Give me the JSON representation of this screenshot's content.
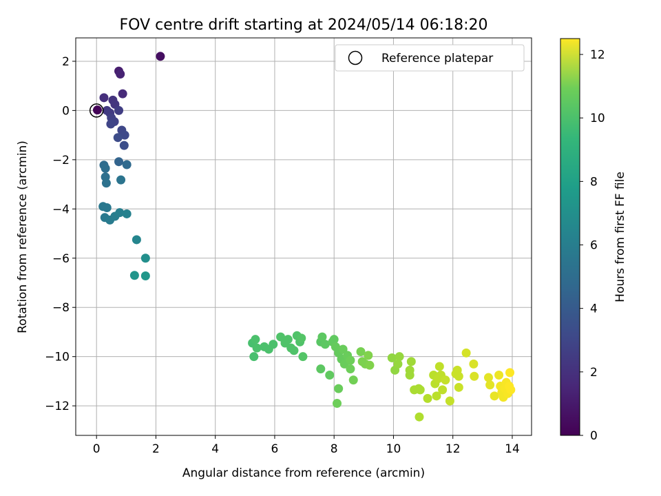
{
  "chart_data": {
    "type": "scatter",
    "title": "FOV centre drift starting at 2024/05/14 06:18:20",
    "xlabel": "Angular distance from reference (arcmin)",
    "ylabel": "Rotation from reference (arcmin)",
    "xlim": [
      -0.7,
      14.65
    ],
    "ylim": [
      -13.2,
      2.95
    ],
    "xticks": [
      0,
      2,
      4,
      6,
      8,
      10,
      12,
      14
    ],
    "yticks": [
      2,
      0,
      -2,
      -4,
      -6,
      -8,
      -10,
      -12
    ],
    "xtick_labels": [
      "0",
      "2",
      "4",
      "6",
      "8",
      "10",
      "12",
      "14"
    ],
    "ytick_labels": [
      "2",
      "0",
      "−2",
      "−4",
      "−6",
      "−8",
      "−10",
      "−12"
    ],
    "grid": true,
    "legend": {
      "position": "top-right",
      "label": "Reference platepar"
    },
    "reference_point": {
      "x": 0,
      "y": 0
    },
    "colorbar": {
      "label": "Hours from first FF file",
      "range": [
        0,
        12.5
      ],
      "ticks": [
        0,
        2,
        4,
        6,
        8,
        10,
        12
      ],
      "tick_labels": [
        "0",
        "2",
        "4",
        "6",
        "8",
        "10",
        "12"
      ],
      "colormap": "viridis"
    },
    "points": [
      {
        "x": 0.03,
        "y": 0.02,
        "h": 0.1
      },
      {
        "x": 2.15,
        "y": 2.2,
        "h": 0.5
      },
      {
        "x": 0.75,
        "y": 1.6,
        "h": 1.0
      },
      {
        "x": 0.8,
        "y": 1.48,
        "h": 1.2
      },
      {
        "x": 0.88,
        "y": 0.68,
        "h": 1.5
      },
      {
        "x": 0.25,
        "y": 0.52,
        "h": 1.7
      },
      {
        "x": 0.55,
        "y": 0.42,
        "h": 1.9
      },
      {
        "x": 0.62,
        "y": 0.25,
        "h": 2.0
      },
      {
        "x": 0.35,
        "y": 0.0,
        "h": 2.1
      },
      {
        "x": 0.45,
        "y": -0.1,
        "h": 2.2
      },
      {
        "x": 0.75,
        "y": 0.0,
        "h": 2.3
      },
      {
        "x": 0.5,
        "y": -0.3,
        "h": 2.4
      },
      {
        "x": 0.6,
        "y": -0.45,
        "h": 2.5
      },
      {
        "x": 0.48,
        "y": -0.55,
        "h": 2.6
      },
      {
        "x": 0.85,
        "y": -0.8,
        "h": 2.7
      },
      {
        "x": 0.95,
        "y": -1.0,
        "h": 2.8
      },
      {
        "x": 0.72,
        "y": -1.1,
        "h": 2.9
      },
      {
        "x": 0.93,
        "y": -1.42,
        "h": 3.0
      },
      {
        "x": 0.75,
        "y": -2.08,
        "h": 4.0
      },
      {
        "x": 1.02,
        "y": -2.2,
        "h": 4.3
      },
      {
        "x": 0.25,
        "y": -2.22,
        "h": 4.4
      },
      {
        "x": 0.3,
        "y": -2.35,
        "h": 4.5
      },
      {
        "x": 0.3,
        "y": -2.7,
        "h": 4.6
      },
      {
        "x": 0.33,
        "y": -2.95,
        "h": 4.7
      },
      {
        "x": 0.82,
        "y": -2.82,
        "h": 4.8
      },
      {
        "x": 0.22,
        "y": -3.9,
        "h": 5.0
      },
      {
        "x": 0.35,
        "y": -3.95,
        "h": 5.0
      },
      {
        "x": 0.28,
        "y": -4.35,
        "h": 5.1
      },
      {
        "x": 0.45,
        "y": -4.45,
        "h": 5.2
      },
      {
        "x": 0.62,
        "y": -4.3,
        "h": 5.3
      },
      {
        "x": 0.78,
        "y": -4.15,
        "h": 5.4
      },
      {
        "x": 1.02,
        "y": -4.2,
        "h": 5.5
      },
      {
        "x": 1.35,
        "y": -5.25,
        "h": 5.7
      },
      {
        "x": 1.65,
        "y": -6.0,
        "h": 6.2
      },
      {
        "x": 1.28,
        "y": -6.7,
        "h": 6.5
      },
      {
        "x": 1.65,
        "y": -6.72,
        "h": 6.6
      },
      {
        "x": 5.25,
        "y": -9.45,
        "h": 8.8
      },
      {
        "x": 5.35,
        "y": -9.3,
        "h": 8.9
      },
      {
        "x": 5.4,
        "y": -9.65,
        "h": 8.9
      },
      {
        "x": 5.3,
        "y": -10.0,
        "h": 8.8
      },
      {
        "x": 5.65,
        "y": -9.6,
        "h": 8.9
      },
      {
        "x": 5.8,
        "y": -9.7,
        "h": 8.9
      },
      {
        "x": 5.95,
        "y": -9.5,
        "h": 8.9
      },
      {
        "x": 6.2,
        "y": -9.2,
        "h": 9.0
      },
      {
        "x": 6.35,
        "y": -9.45,
        "h": 9.0
      },
      {
        "x": 6.45,
        "y": -9.3,
        "h": 9.0
      },
      {
        "x": 6.55,
        "y": -9.65,
        "h": 9.0
      },
      {
        "x": 6.65,
        "y": -9.75,
        "h": 9.0
      },
      {
        "x": 6.75,
        "y": -9.15,
        "h": 9.0
      },
      {
        "x": 6.85,
        "y": -9.4,
        "h": 9.0
      },
      {
        "x": 6.9,
        "y": -9.25,
        "h": 9.1
      },
      {
        "x": 6.95,
        "y": -10.0,
        "h": 9.1
      },
      {
        "x": 7.55,
        "y": -9.4,
        "h": 9.2
      },
      {
        "x": 7.6,
        "y": -9.2,
        "h": 9.3
      },
      {
        "x": 7.7,
        "y": -9.5,
        "h": 9.3
      },
      {
        "x": 7.55,
        "y": -10.5,
        "h": 9.3
      },
      {
        "x": 7.85,
        "y": -10.75,
        "h": 9.4
      },
      {
        "x": 7.95,
        "y": -9.4,
        "h": 9.4
      },
      {
        "x": 8.0,
        "y": -9.3,
        "h": 9.4
      },
      {
        "x": 8.05,
        "y": -9.6,
        "h": 9.5
      },
      {
        "x": 8.15,
        "y": -9.85,
        "h": 9.5
      },
      {
        "x": 8.25,
        "y": -10.1,
        "h": 9.5
      },
      {
        "x": 8.3,
        "y": -9.7,
        "h": 9.6
      },
      {
        "x": 8.35,
        "y": -10.3,
        "h": 9.6
      },
      {
        "x": 8.45,
        "y": -9.95,
        "h": 9.6
      },
      {
        "x": 8.55,
        "y": -10.15,
        "h": 9.7
      },
      {
        "x": 8.55,
        "y": -10.5,
        "h": 9.7
      },
      {
        "x": 8.15,
        "y": -11.3,
        "h": 9.6
      },
      {
        "x": 8.1,
        "y": -11.9,
        "h": 9.7
      },
      {
        "x": 8.65,
        "y": -10.95,
        "h": 9.8
      },
      {
        "x": 8.9,
        "y": -9.8,
        "h": 9.9
      },
      {
        "x": 8.95,
        "y": -10.2,
        "h": 10.0
      },
      {
        "x": 9.05,
        "y": -10.3,
        "h": 10.0
      },
      {
        "x": 9.15,
        "y": -9.95,
        "h": 10.1
      },
      {
        "x": 9.2,
        "y": -10.35,
        "h": 10.1
      },
      {
        "x": 9.95,
        "y": -10.05,
        "h": 10.4
      },
      {
        "x": 10.05,
        "y": -10.55,
        "h": 10.4
      },
      {
        "x": 10.15,
        "y": -10.3,
        "h": 10.5
      },
      {
        "x": 10.2,
        "y": -10.0,
        "h": 10.5
      },
      {
        "x": 10.55,
        "y": -10.55,
        "h": 10.7
      },
      {
        "x": 10.6,
        "y": -10.2,
        "h": 10.7
      },
      {
        "x": 10.55,
        "y": -10.75,
        "h": 10.7
      },
      {
        "x": 10.7,
        "y": -11.35,
        "h": 10.9
      },
      {
        "x": 10.85,
        "y": -11.3,
        "h": 10.9
      },
      {
        "x": 10.9,
        "y": -11.35,
        "h": 10.9
      },
      {
        "x": 10.87,
        "y": -12.45,
        "h": 11.0
      },
      {
        "x": 11.15,
        "y": -11.7,
        "h": 11.1
      },
      {
        "x": 11.35,
        "y": -10.75,
        "h": 11.2
      },
      {
        "x": 11.4,
        "y": -11.1,
        "h": 11.2
      },
      {
        "x": 11.45,
        "y": -11.6,
        "h": 11.2
      },
      {
        "x": 11.5,
        "y": -10.9,
        "h": 11.3
      },
      {
        "x": 11.55,
        "y": -10.4,
        "h": 11.3
      },
      {
        "x": 11.6,
        "y": -10.75,
        "h": 11.3
      },
      {
        "x": 11.65,
        "y": -11.35,
        "h": 11.3
      },
      {
        "x": 11.75,
        "y": -10.95,
        "h": 11.4
      },
      {
        "x": 11.9,
        "y": -11.8,
        "h": 11.4
      },
      {
        "x": 12.1,
        "y": -10.7,
        "h": 11.5
      },
      {
        "x": 12.15,
        "y": -10.55,
        "h": 11.5
      },
      {
        "x": 12.2,
        "y": -10.8,
        "h": 11.5
      },
      {
        "x": 12.2,
        "y": -11.25,
        "h": 11.5
      },
      {
        "x": 12.45,
        "y": -9.85,
        "h": 11.7
      },
      {
        "x": 12.7,
        "y": -10.3,
        "h": 11.8
      },
      {
        "x": 12.72,
        "y": -10.8,
        "h": 11.8
      },
      {
        "x": 13.2,
        "y": -10.85,
        "h": 12.0
      },
      {
        "x": 13.25,
        "y": -11.15,
        "h": 12.0
      },
      {
        "x": 13.4,
        "y": -11.6,
        "h": 12.1
      },
      {
        "x": 13.55,
        "y": -10.75,
        "h": 12.2
      },
      {
        "x": 13.6,
        "y": -11.2,
        "h": 12.3
      },
      {
        "x": 13.65,
        "y": -11.45,
        "h": 12.3
      },
      {
        "x": 13.7,
        "y": -11.65,
        "h": 12.3
      },
      {
        "x": 13.75,
        "y": -11.3,
        "h": 12.4
      },
      {
        "x": 13.8,
        "y": -11.05,
        "h": 12.4
      },
      {
        "x": 13.85,
        "y": -11.5,
        "h": 12.4
      },
      {
        "x": 13.9,
        "y": -11.2,
        "h": 12.5
      },
      {
        "x": 13.92,
        "y": -10.65,
        "h": 12.5
      },
      {
        "x": 13.95,
        "y": -11.35,
        "h": 12.5
      }
    ]
  }
}
